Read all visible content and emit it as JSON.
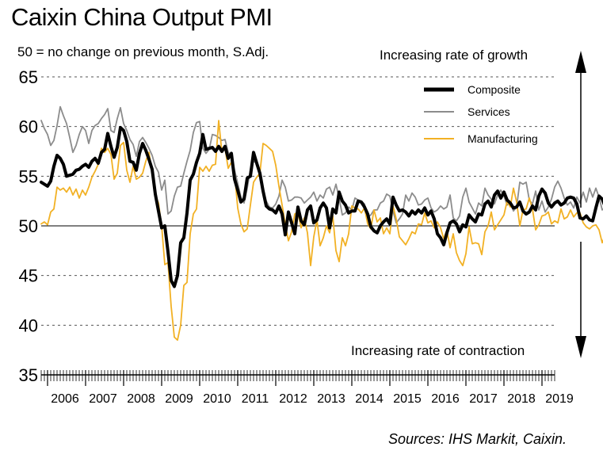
{
  "title": "Caixin China Output PMI",
  "subtitle": "50 = no change on previous month, S.Adj.",
  "annotations": {
    "up": "Increasing rate of growth",
    "down": "Increasing rate of contraction"
  },
  "source": "Sources: IHS Markit, Caixin.",
  "colors": {
    "composite": "#000000",
    "services": "#8c8c8c",
    "manufacturing": "#f2b124"
  },
  "chart_data": {
    "type": "line",
    "title": "Caixin China Output PMI",
    "subtitle": "50 = no change on previous month, S.Adj.",
    "xlabel": "",
    "ylabel": "",
    "ylim": [
      35,
      65
    ],
    "yticks": [
      35,
      40,
      45,
      50,
      55,
      60,
      65
    ],
    "xticks": [
      "2006",
      "2007",
      "2008",
      "2009",
      "2010",
      "2011",
      "2012",
      "2013",
      "2014",
      "2015",
      "2016",
      "2017",
      "2018",
      "2019"
    ],
    "x_start": "2005-11",
    "x_end": "2019-05",
    "gridlines": "horizontal dashed",
    "reference_line": 50,
    "legend_position": "top-right",
    "series": [
      {
        "name": "Composite",
        "values": [
          54.4,
          54.2,
          54,
          54.5,
          56,
          57.1,
          56.8,
          56.2,
          55,
          55.1,
          55.2,
          55.6,
          55.7,
          56,
          56.2,
          55.9,
          56.5,
          56.8,
          56.3,
          57.4,
          57.7,
          59.3,
          58,
          56.9,
          57.9,
          59.9,
          59.6,
          58.5,
          56.5,
          56.4,
          55.6,
          57.3,
          58.3,
          57.6,
          56.7,
          55.7,
          53.2,
          51.5,
          49.8,
          50,
          47.4,
          44.5,
          43.9,
          45,
          48.3,
          48.8,
          51.3,
          54.6,
          55.2,
          56.4,
          57.3,
          59.2,
          57.7,
          57.8,
          57.9,
          57.5,
          58,
          57.5,
          58,
          56.8,
          57.3,
          54.7,
          53.6,
          52.4,
          52.7,
          54.8,
          55,
          57.4,
          56.3,
          55.3,
          53.5,
          52,
          51.7,
          51.6,
          51.3,
          52,
          51.2,
          49.1,
          51.4,
          50.3,
          49.2,
          51.9,
          50.5,
          50.1,
          51.6,
          52,
          50.3,
          50.6,
          51.8,
          52.3,
          51.8,
          49.8,
          51.7,
          51.3,
          53.4,
          52.5,
          52.1,
          51.3,
          51.5,
          51.5,
          52.5,
          52.4,
          51.9,
          51.2,
          49.9,
          49.5,
          49.3,
          50,
          50.4,
          50.7,
          50.2,
          52.9,
          52.1,
          51.5,
          51.6,
          51.4,
          51,
          51.5,
          51.2,
          51.6,
          51.3,
          51.8,
          51.1,
          51.5,
          50.7,
          49.2,
          48.8,
          48.1,
          49.3,
          50.3,
          50.5,
          50.2,
          49.4,
          50.1,
          49.9,
          51.1,
          50.7,
          50.4,
          51.2,
          51.1,
          52.2,
          52.5,
          51.9,
          53.1,
          53.5,
          52.8,
          53.4,
          52.6,
          52.3,
          51.8,
          51.9,
          52.4,
          51.5,
          51.2,
          51.4,
          52,
          51.6,
          53,
          53.7,
          53.3,
          52.3,
          51.9,
          52.3,
          52.5,
          52.1,
          52.3,
          52.8,
          52.9,
          52.8,
          52.2,
          50.8,
          50.7,
          51,
          50.6,
          50.5,
          51.8,
          53,
          52.7,
          51.9,
          50.9,
          50.7
        ]
      },
      {
        "name": "Services",
        "values": [
          60.6,
          59.8,
          59.2,
          58.1,
          58.6,
          60.1,
          62,
          61.1,
          60.3,
          58.9,
          57.4,
          58.1,
          59.2,
          60,
          59.6,
          58.3,
          59.6,
          60.1,
          60.3,
          60.8,
          61.2,
          61.8,
          59.6,
          59.4,
          60.8,
          61.9,
          60.3,
          59.6,
          58.7,
          58.2,
          57,
          58.5,
          58.9,
          58.4,
          57.8,
          57.1,
          56,
          55.4,
          53.6,
          54.6,
          51.2,
          51.5,
          53,
          53.9,
          54,
          55.3,
          56.5,
          57.6,
          59.4,
          60.4,
          60.5,
          57.8,
          57.3,
          57.7,
          59.2,
          59.1,
          58.9,
          58.6,
          58.7,
          57.4,
          57.1,
          55.6,
          54.3,
          52.9,
          52.3,
          53.8,
          55.7,
          56.5,
          56.3,
          55.3,
          53.8,
          52.5,
          51.9,
          51.8,
          52.2,
          53,
          54.6,
          53.9,
          52.5,
          52.6,
          52.9,
          52.9,
          52.8,
          52.3,
          52.6,
          52.9,
          53.4,
          52.5,
          53.1,
          52.8,
          53.7,
          53.9,
          53.1,
          54.2,
          52.8,
          51.1,
          51.3,
          51.9,
          51.6,
          52.8,
          52.6,
          52.5,
          52.2,
          50.9,
          51.1,
          51.6,
          51.6,
          52.3,
          52.5,
          53.2,
          53,
          51.5,
          50.3,
          50.7,
          51.2,
          53.1,
          52.5,
          53.3,
          52.9,
          52.1,
          52.2,
          52.6,
          52.8,
          51.8,
          51.4,
          51.6,
          52,
          51.7,
          51.9,
          53.1,
          50.8,
          50.5,
          51,
          52.9,
          53.8,
          52.4,
          51.8,
          51.2,
          52.3,
          52,
          53.8,
          53.1,
          52.7,
          52.2,
          53.1,
          53.6,
          53,
          52.1,
          52.3,
          51.5,
          51.9,
          54.4,
          54.2,
          54.4,
          52.6,
          52.2,
          53.5,
          51.6,
          52.5,
          51.4,
          51.9,
          52.7,
          53.9,
          54.5,
          53.8,
          52.8,
          52.1,
          52.4,
          51.8,
          52.9,
          52.3,
          53.4,
          52.4,
          53.8,
          52.9,
          53.8,
          52.9,
          51.6,
          51.9,
          51.7,
          51.9,
          51.5,
          51.3
        ]
      },
      {
        "name": "Manufacturing",
        "values": [
          50.2,
          50.4,
          50.1,
          51.4,
          51.7,
          53.9,
          53.6,
          53.8,
          53.4,
          53.9,
          53.1,
          53.7,
          52.8,
          53.6,
          53.1,
          53.9,
          54.9,
          55.5,
          56.2,
          57.8,
          57.4,
          57.8,
          57.2,
          54.7,
          55.3,
          58.1,
          58.4,
          55.6,
          54.4,
          56,
          54.7,
          54.9,
          55.3,
          56.5,
          57.4,
          55.3,
          53.1,
          52.3,
          50,
          46.1,
          46.3,
          41.9,
          38.8,
          38.5,
          40,
          44,
          44.3,
          49.2,
          51.2,
          51.7,
          55.9,
          55.5,
          56,
          55.5,
          56.1,
          56.2,
          60.6,
          57.4,
          57.8,
          55.8,
          56.4,
          55.3,
          51.8,
          50.2,
          49.4,
          49.7,
          52.1,
          54.4,
          54.9,
          55.3,
          58.3,
          58.1,
          57.8,
          57.5,
          56.1,
          54,
          52.1,
          50.2,
          48.5,
          49.4,
          51.2,
          51.4,
          49.8,
          50.8,
          49.3,
          46,
          48.9,
          50.6,
          48,
          48.8,
          50,
          49.3,
          51,
          47.5,
          46.4,
          48.8,
          48,
          49.2,
          52,
          51.8,
          51.7,
          51.3,
          51.8,
          50.2,
          49.7,
          51.6,
          50.4,
          50.8,
          49.2,
          49.8,
          49.2,
          52,
          50.7,
          48.9,
          48.5,
          48.1,
          48.7,
          49.4,
          49.2,
          50.2,
          50.1,
          51.3,
          50.3,
          50.5,
          49.8,
          50.4,
          49.8,
          48.7,
          49.6,
          47.8,
          49.2,
          47.3,
          46.5,
          46,
          47.2,
          49.9,
          48.2,
          48.3,
          48.2,
          47.1,
          49.4,
          50,
          51.4,
          49.6,
          50.1,
          50.6,
          51.1,
          52.5,
          51.9,
          53.8,
          52.4,
          50,
          51.6,
          51.7,
          52.8,
          51.7,
          49.6,
          50.1,
          51,
          51.1,
          51.4,
          50.2,
          50.5,
          50.3,
          51.7,
          50.7,
          50.9,
          51.6,
          50.9,
          51.3,
          51.3,
          50.3,
          49.9,
          49.7,
          50,
          50.1,
          49.6,
          48.3,
          49.1,
          50.2,
          50.8,
          51.8,
          50.4,
          49.2,
          50.6
        ]
      }
    ]
  }
}
